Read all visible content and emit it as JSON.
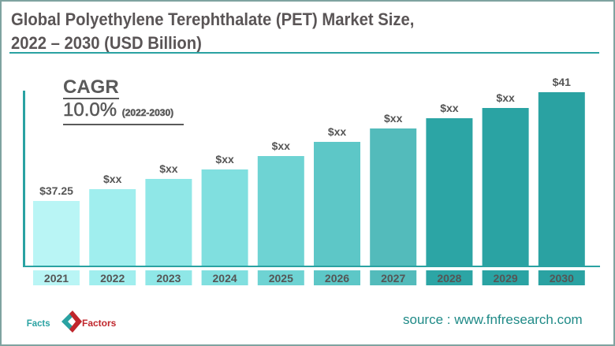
{
  "chart_data": {
    "type": "bar",
    "title": "Global Polyethylene Terephthalate (PET) Market Size,",
    "subtitle": "2022 – 2030 (USD Billion)",
    "categories": [
      "2021",
      "2022",
      "2023",
      "2024",
      "2025",
      "2026",
      "2027",
      "2028",
      "2029",
      "2030"
    ],
    "values": [
      37.25,
      null,
      null,
      null,
      null,
      null,
      null,
      null,
      null,
      41
    ],
    "data_labels": [
      "$37.25",
      "$xx",
      "$xx",
      "$xx",
      "$xx",
      "$xx",
      "$xx",
      "$xx",
      "$xx",
      "$41"
    ],
    "colors": [
      "#b9f5f5",
      "#a0eeee",
      "#8fe7e7",
      "#80dfdf",
      "#6ed3d3",
      "#5dc7c7",
      "#53bbbb",
      "#2ca5a5",
      "#2aa3a3",
      "#2aa2a2"
    ],
    "xlabel": "",
    "ylabel": "",
    "grid": false
  },
  "cagr": {
    "label": "CAGR",
    "value": "10.0%",
    "period": "(2022-2030)"
  },
  "footer": {
    "source": "source : www.fnfresearch.com",
    "logo_text_left": "Facts",
    "logo_text_right": "Factors"
  },
  "accent_color": "#2aa2a2"
}
